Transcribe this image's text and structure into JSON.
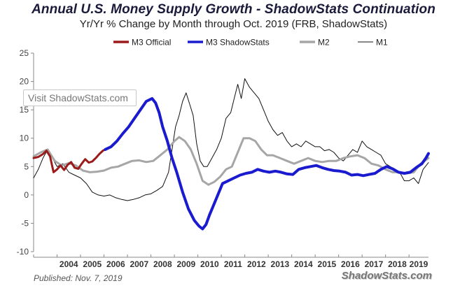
{
  "header": {
    "title": "Annual U.S. Money Supply Growth - ShadowStats Continuation",
    "subtitle": "Yr/Yr % Change by Month through Oct. 2019  (FRB, ShadowStats)"
  },
  "footer": {
    "published": "Published: Nov. 7, 2019",
    "brand": "ShadowStats.com"
  },
  "overlay": {
    "visit_label": "Visit ShadowStats.com"
  },
  "colors": {
    "m3_official": "#9b1b1b",
    "m3_shadowstats": "#1a1acf",
    "m2": "#a6a6a6",
    "m1": "#111111"
  },
  "chart_data": {
    "type": "line",
    "ylim": [
      -10,
      25
    ],
    "xlim": [
      2003.0,
      2019.83
    ],
    "yticks": [
      "25",
      "20",
      "15",
      "10",
      "5",
      "0",
      "-5",
      "-10"
    ],
    "yticks_values": [
      25,
      20,
      15,
      10,
      5,
      0,
      -5,
      -10
    ],
    "xticks": [
      "2004",
      "2005",
      "2006",
      "2007",
      "2008",
      "2009",
      "2010",
      "2011",
      "2012",
      "2013",
      "2014",
      "2015",
      "2016",
      "2017",
      "2018",
      "2019"
    ],
    "grid": false,
    "legend_position": "top",
    "series": [
      {
        "name": "M3 Official",
        "color": "#9b1b1b",
        "x": [
          2003.0,
          2003.2,
          2003.4,
          2003.55,
          2003.7,
          2003.85,
          2004.0,
          2004.15,
          2004.3,
          2004.45,
          2004.6,
          2004.75,
          2004.9,
          2005.05,
          2005.2,
          2005.35,
          2005.5,
          2005.65,
          2005.8,
          2005.95,
          2006.05
        ],
        "y": [
          6.5,
          6.7,
          7.2,
          7.8,
          6.8,
          4.0,
          4.5,
          5.2,
          4.4,
          5.3,
          5.8,
          4.8,
          4.6,
          5.5,
          6.3,
          5.7,
          5.9,
          6.5,
          7.2,
          7.8,
          8.0
        ]
      },
      {
        "name": "M3 ShadowStats",
        "color": "#1a1acf",
        "x": [
          2006.05,
          2006.3,
          2006.55,
          2006.8,
          2007.05,
          2007.3,
          2007.55,
          2007.8,
          2008.05,
          2008.2,
          2008.35,
          2008.5,
          2008.7,
          2008.9,
          2009.1,
          2009.35,
          2009.6,
          2009.85,
          2010.05,
          2010.2,
          2010.35,
          2010.5,
          2010.65,
          2010.85,
          2011.05,
          2011.3,
          2011.55,
          2011.8,
          2012.05,
          2012.3,
          2012.55,
          2012.8,
          2013.05,
          2013.3,
          2013.55,
          2013.8,
          2014.05,
          2014.3,
          2014.55,
          2014.8,
          2015.05,
          2015.3,
          2015.55,
          2015.8,
          2016.05,
          2016.3,
          2016.55,
          2016.8,
          2017.05,
          2017.3,
          2017.55,
          2017.8,
          2018.05,
          2018.3,
          2018.55,
          2018.8,
          2019.05,
          2019.3,
          2019.55,
          2019.72,
          2019.83
        ],
        "y": [
          8.0,
          8.5,
          9.5,
          10.8,
          12.0,
          13.5,
          15.0,
          16.5,
          17.0,
          16.2,
          14.5,
          12.0,
          9.5,
          6.5,
          4.0,
          0.5,
          -2.5,
          -4.5,
          -5.5,
          -6.0,
          -5.2,
          -3.5,
          -2.0,
          0.0,
          2.0,
          2.5,
          3.0,
          3.5,
          3.8,
          4.0,
          4.5,
          4.2,
          4.0,
          4.2,
          4.0,
          3.7,
          3.6,
          4.5,
          4.8,
          5.0,
          5.2,
          4.8,
          4.5,
          4.3,
          4.2,
          4.0,
          3.5,
          3.6,
          3.4,
          3.6,
          3.8,
          4.5,
          5.0,
          4.6,
          4.0,
          3.8,
          4.0,
          4.8,
          5.5,
          6.5,
          7.3
        ]
      },
      {
        "name": "M2",
        "color": "#a6a6a6",
        "x": [
          2003.0,
          2003.3,
          2003.6,
          2003.9,
          2004.2,
          2004.5,
          2004.8,
          2005.1,
          2005.4,
          2005.7,
          2006.0,
          2006.3,
          2006.6,
          2006.9,
          2007.2,
          2007.5,
          2007.8,
          2008.1,
          2008.4,
          2008.7,
          2009.0,
          2009.2,
          2009.45,
          2009.7,
          2009.95,
          2010.2,
          2010.45,
          2010.7,
          2010.95,
          2011.2,
          2011.45,
          2011.7,
          2011.95,
          2012.2,
          2012.45,
          2012.7,
          2012.95,
          2013.2,
          2013.5,
          2013.8,
          2014.1,
          2014.4,
          2014.7,
          2015.0,
          2015.3,
          2015.6,
          2015.9,
          2016.2,
          2016.5,
          2016.8,
          2017.1,
          2017.4,
          2017.7,
          2018.0,
          2018.3,
          2018.6,
          2018.9,
          2019.2,
          2019.5,
          2019.83
        ],
        "y": [
          6.8,
          7.5,
          8.0,
          6.0,
          5.2,
          5.6,
          5.2,
          4.3,
          4.0,
          4.1,
          4.3,
          4.8,
          5.0,
          5.5,
          6.0,
          6.1,
          5.8,
          6.0,
          7.0,
          8.0,
          9.5,
          10.2,
          9.5,
          8.0,
          5.5,
          2.5,
          1.8,
          2.3,
          3.2,
          4.5,
          5.0,
          7.5,
          10.0,
          10.0,
          9.5,
          8.0,
          7.0,
          7.0,
          6.5,
          6.0,
          5.5,
          6.0,
          6.5,
          6.0,
          5.8,
          6.0,
          6.0,
          6.5,
          6.8,
          7.0,
          6.5,
          5.5,
          5.2,
          4.5,
          4.0,
          4.0,
          3.8,
          4.0,
          5.5,
          6.5
        ]
      },
      {
        "name": "M1",
        "color": "#111111",
        "x": [
          2003.0,
          2003.2,
          2003.4,
          2003.6,
          2003.8,
          2004.0,
          2004.25,
          2004.5,
          2004.75,
          2005.0,
          2005.25,
          2005.5,
          2005.75,
          2006.0,
          2006.25,
          2006.5,
          2006.75,
          2007.0,
          2007.25,
          2007.5,
          2007.75,
          2008.0,
          2008.25,
          2008.5,
          2008.75,
          2008.9,
          2009.05,
          2009.2,
          2009.35,
          2009.5,
          2009.65,
          2009.8,
          2009.95,
          2010.1,
          2010.25,
          2010.4,
          2010.6,
          2010.8,
          2011.0,
          2011.2,
          2011.4,
          2011.55,
          2011.7,
          2011.85,
          2012.0,
          2012.2,
          2012.4,
          2012.6,
          2012.8,
          2013.0,
          2013.2,
          2013.4,
          2013.6,
          2013.8,
          2014.0,
          2014.2,
          2014.4,
          2014.6,
          2014.8,
          2015.0,
          2015.2,
          2015.4,
          2015.6,
          2015.8,
          2016.0,
          2016.2,
          2016.4,
          2016.6,
          2016.8,
          2017.0,
          2017.2,
          2017.4,
          2017.6,
          2017.8,
          2018.0,
          2018.2,
          2018.4,
          2018.6,
          2018.8,
          2019.0,
          2019.2,
          2019.4,
          2019.6,
          2019.83
        ],
        "y": [
          3.0,
          4.5,
          6.5,
          8.0,
          6.5,
          5.0,
          5.5,
          4.0,
          3.5,
          3.0,
          2.0,
          0.5,
          0.0,
          -0.2,
          0.0,
          -0.5,
          -0.8,
          -1.0,
          -0.8,
          -0.5,
          0.0,
          0.2,
          0.8,
          1.5,
          4.0,
          8.0,
          12.0,
          14.0,
          16.5,
          18.0,
          16.0,
          14.0,
          9.0,
          6.0,
          5.0,
          5.0,
          6.5,
          8.0,
          10.0,
          13.5,
          14.5,
          17.0,
          19.5,
          17.0,
          20.5,
          19.0,
          18.0,
          17.0,
          15.0,
          13.0,
          11.5,
          10.5,
          11.0,
          9.5,
          8.5,
          9.0,
          8.5,
          9.5,
          9.0,
          8.5,
          8.5,
          7.8,
          8.0,
          7.5,
          6.5,
          6.0,
          7.0,
          8.0,
          7.5,
          9.5,
          8.5,
          8.0,
          7.5,
          7.0,
          5.5,
          5.0,
          4.5,
          4.0,
          2.5,
          2.5,
          3.0,
          2.0,
          4.5,
          5.7
        ]
      }
    ]
  }
}
